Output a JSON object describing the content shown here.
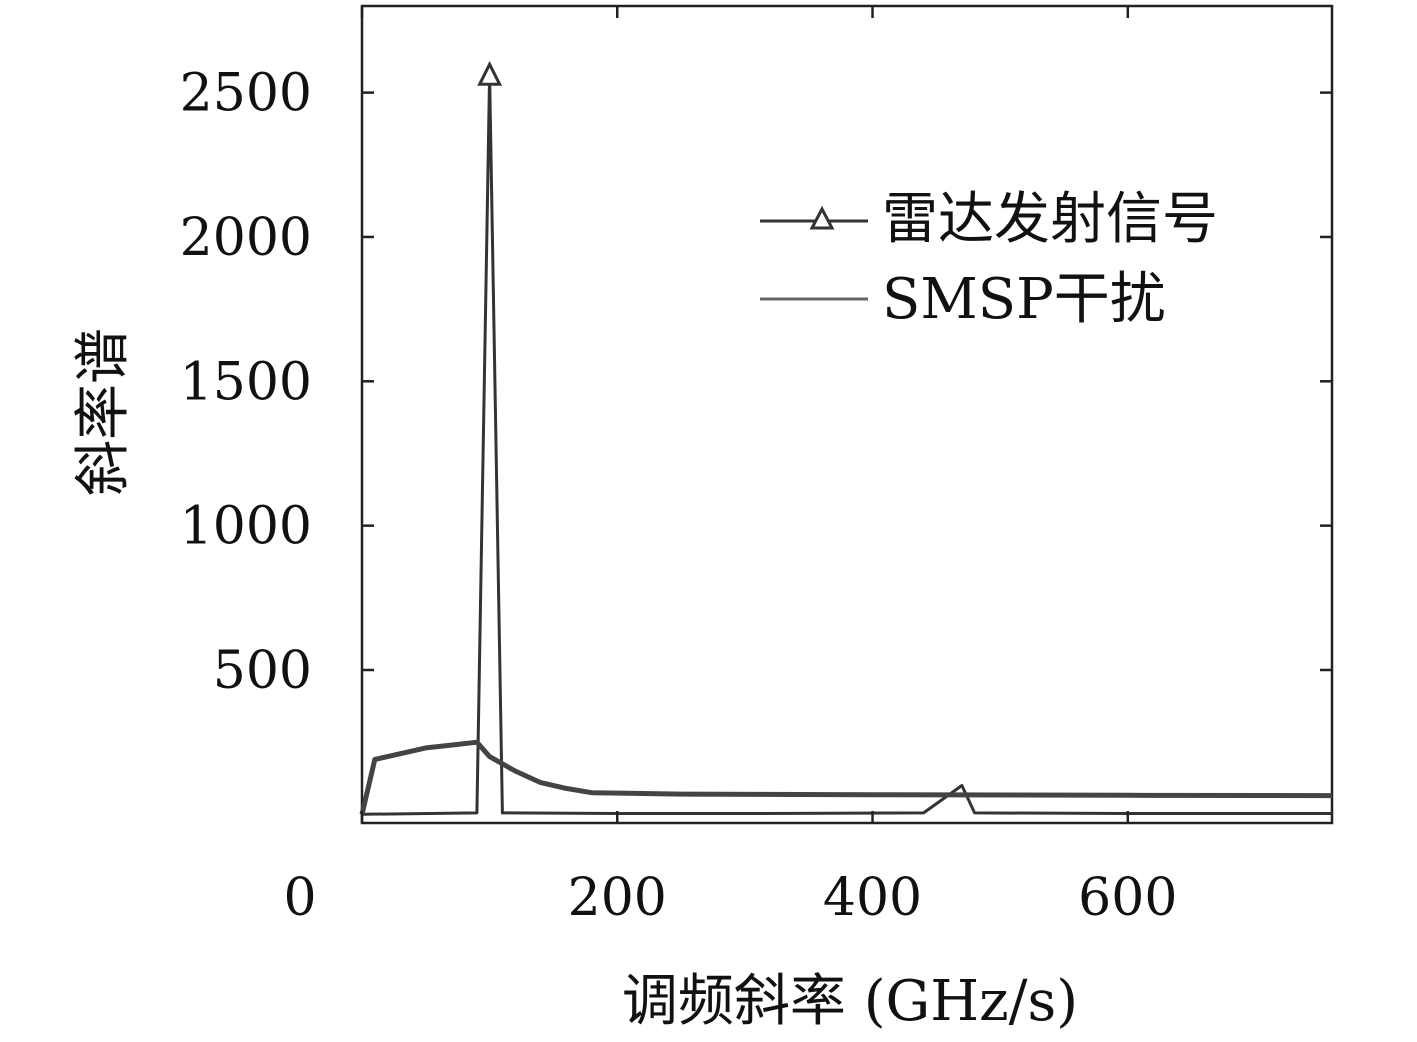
{
  "chart_data": {
    "type": "line",
    "xlabel": "调频斜率 (GHz/s)",
    "ylabel": "斜率谱",
    "x_ticks": [
      0,
      200,
      400,
      600
    ],
    "y_ticks": [
      500,
      1000,
      1500,
      2000,
      2500
    ],
    "xlim": [
      0,
      760
    ],
    "ylim": [
      -30,
      2800
    ],
    "grid": false,
    "legend_position": "top-right",
    "series": [
      {
        "name": "雷达发射信号",
        "marker": "triangle",
        "color": "#333333",
        "points": [
          [
            0,
            0
          ],
          [
            90,
            5
          ],
          [
            100,
            2560
          ],
          [
            110,
            5
          ],
          [
            200,
            3
          ],
          [
            300,
            3
          ],
          [
            440,
            5
          ],
          [
            470,
            100
          ],
          [
            480,
            5
          ],
          [
            600,
            3
          ],
          [
            760,
            3
          ]
        ]
      },
      {
        "name": "SMSP干扰",
        "color": "#444444",
        "points": [
          [
            0,
            0
          ],
          [
            10,
            190
          ],
          [
            30,
            210
          ],
          [
            50,
            230
          ],
          [
            70,
            240
          ],
          [
            90,
            250
          ],
          [
            100,
            200
          ],
          [
            120,
            150
          ],
          [
            140,
            110
          ],
          [
            160,
            90
          ],
          [
            180,
            75
          ],
          [
            250,
            70
          ],
          [
            400,
            68
          ],
          [
            600,
            66
          ],
          [
            760,
            65
          ]
        ]
      }
    ]
  }
}
